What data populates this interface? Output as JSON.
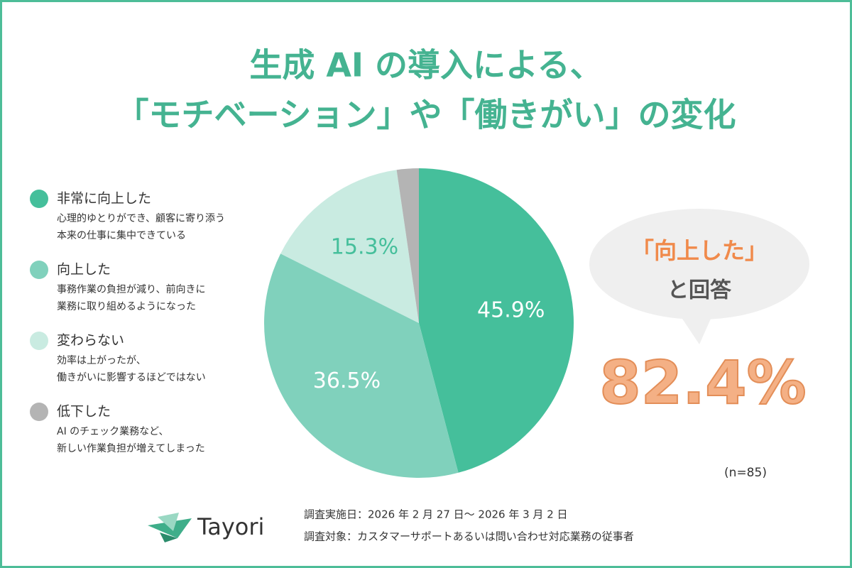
{
  "chart_data": {
    "type": "pie",
    "title": [
      "生成 AI の導入による、",
      "「モチベーション」や「働きがい」の変化"
    ],
    "categories": [
      "非常に向上した",
      "向上した",
      "変わらない",
      "低下した"
    ],
    "descriptions": [
      [
        "心理的ゆとりができ、顧客に寄り添う",
        "本来の仕事に集中できている"
      ],
      [
        "事務作業の負担が減り、前向きに",
        "業務に取り組めるようになった"
      ],
      [
        "効率は上がったが、",
        "働きがいに影響するほどではない"
      ],
      [
        "AI のチェック業務など、",
        "新しい作業負担が増えてしまった"
      ]
    ],
    "values": [
      45.9,
      36.5,
      15.3,
      2.3
    ],
    "value_labels": [
      "45.9%",
      "36.5%",
      "15.3%",
      null
    ],
    "colors": [
      "#45bf9b",
      "#80d1bc",
      "#c9ebe1",
      "#b4b4b4"
    ],
    "value_label_colors": [
      "#ffffff",
      "#ffffff",
      "#45bf9b",
      "#ffffff"
    ],
    "annotations": {
      "callout": [
        "「向上した」",
        "と回答"
      ],
      "total": "82.4%",
      "sample": "(n=85)"
    },
    "footer": [
      "調査実施日：2026 年 2 月 27 日～ 2026 年 3 月 2 日",
      "調査対象：カスタマーサポートあるいは問い合わせ対応業務の従事者"
    ],
    "brand": "Tayori"
  }
}
